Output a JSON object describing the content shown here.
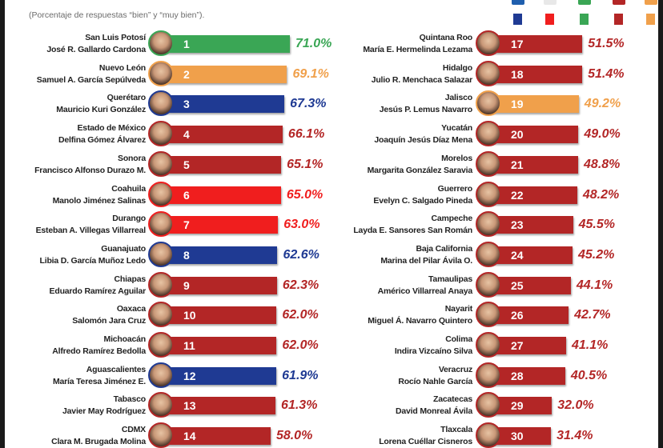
{
  "subtitle": "(Porcentaje de respuestas “bien” y “muy bien”).",
  "colors": {
    "PAN": "#1f3a93",
    "PRI": "#f01e1e",
    "PVEM": "#3aa655",
    "Morena": "#b32626",
    "MC": "#f0a04b"
  },
  "legend": [
    {
      "color": "#1f3a93",
      "icon": "pan-logo-icon"
    },
    {
      "color": "#f01e1e",
      "icon": "pri-logo-icon"
    },
    {
      "color": "#3aa655",
      "icon": "pvem-logo-icon"
    },
    {
      "color": "#b32626",
      "icon": "morena-logo-icon"
    },
    {
      "color": "#f0a04b",
      "icon": "mc-logo-icon"
    }
  ],
  "chart_data": {
    "type": "bar",
    "orientation": "horizontal",
    "subtitle": "(Porcentaje de respuestas “bien” y “muy bien”).",
    "items": [
      {
        "rank": "1",
        "state": "San Luis Potosí",
        "name": "José R. Gallardo Cardona",
        "value": 71.0,
        "label": "71.0%",
        "color": "#3aa655"
      },
      {
        "rank": "2",
        "state": "Nuevo León",
        "name": "Samuel A. García Sepúlveda",
        "value": 69.1,
        "label": "69.1%",
        "color": "#f0a04b"
      },
      {
        "rank": "3",
        "state": "Querétaro",
        "name": "Mauricio Kuri González",
        "value": 67.3,
        "label": "67.3%",
        "color": "#1f3a93"
      },
      {
        "rank": "4",
        "state": "Estado de México",
        "name": "Delfina Gómez Álvarez",
        "value": 66.1,
        "label": "66.1%",
        "color": "#b32626"
      },
      {
        "rank": "5",
        "state": "Sonora",
        "name": "Francisco Alfonso Durazo M.",
        "value": 65.1,
        "label": "65.1%",
        "color": "#b32626"
      },
      {
        "rank": "6",
        "state": "Coahuila",
        "name": "Manolo Jiménez Salinas",
        "value": 65.0,
        "label": "65.0%",
        "color": "#f01e1e"
      },
      {
        "rank": "7",
        "state": "Durango",
        "name": "Esteban A. Villegas Villarreal",
        "value": 63.0,
        "label": "63.0%",
        "color": "#f01e1e"
      },
      {
        "rank": "8",
        "state": "Guanajuato",
        "name": "Libia D. García Muñoz Ledo",
        "value": 62.6,
        "label": "62.6%",
        "color": "#1f3a93"
      },
      {
        "rank": "9",
        "state": "Chiapas",
        "name": "Eduardo Ramírez Aguilar",
        "value": 62.3,
        "label": "62.3%",
        "color": "#b32626"
      },
      {
        "rank": "10",
        "state": "Oaxaca",
        "name": "Salomón Jara Cruz",
        "value": 62.0,
        "label": "62.0%",
        "color": "#b32626"
      },
      {
        "rank": "11",
        "state": "Michoacán",
        "name": "Alfredo Ramírez Bedolla",
        "value": 62.0,
        "label": "62.0%",
        "color": "#b32626"
      },
      {
        "rank": "12",
        "state": "Aguascalientes",
        "name": "María Teresa Jiménez E.",
        "value": 61.9,
        "label": "61.9%",
        "color": "#1f3a93"
      },
      {
        "rank": "13",
        "state": "Tabasco",
        "name": "Javier May Rodríguez",
        "value": 61.3,
        "label": "61.3%",
        "color": "#b32626"
      },
      {
        "rank": "14",
        "state": "CDMX",
        "name": "Clara M. Brugada Molina",
        "value": 58.0,
        "label": "58.0%",
        "color": "#b32626"
      },
      {
        "rank": "17",
        "state": "Quintana Roo",
        "name": "María E. Hermelinda Lezama",
        "value": 51.5,
        "label": "51.5%",
        "color": "#b32626"
      },
      {
        "rank": "18",
        "state": "Hidalgo",
        "name": "Julio R. Menchaca Salazar",
        "value": 51.4,
        "label": "51.4%",
        "color": "#b32626"
      },
      {
        "rank": "19",
        "state": "Jalisco",
        "name": "Jesús P. Lemus Navarro",
        "value": 49.2,
        "label": "49.2%",
        "color": "#f0a04b"
      },
      {
        "rank": "20",
        "state": "Yucatán",
        "name": "Joaquín Jesús Díaz Mena",
        "value": 49.0,
        "label": "49.0%",
        "color": "#b32626"
      },
      {
        "rank": "21",
        "state": "Morelos",
        "name": "Margarita González Saravia",
        "value": 48.8,
        "label": "48.8%",
        "color": "#b32626"
      },
      {
        "rank": "22",
        "state": "Guerrero",
        "name": "Evelyn C. Salgado Pineda",
        "value": 48.2,
        "label": "48.2%",
        "color": "#b32626"
      },
      {
        "rank": "23",
        "state": "Campeche",
        "name": "Layda E. Sansores San Román",
        "value": 45.5,
        "label": "45.5%",
        "color": "#b32626"
      },
      {
        "rank": "24",
        "state": "Baja California",
        "name": "Marina del Pilar Ávila O.",
        "value": 45.2,
        "label": "45.2%",
        "color": "#b32626"
      },
      {
        "rank": "25",
        "state": "Tamaulipas",
        "name": "Américo Villarreal Anaya",
        "value": 44.1,
        "label": "44.1%",
        "color": "#b32626"
      },
      {
        "rank": "26",
        "state": "Nayarit",
        "name": "Miguel Á. Navarro Quintero",
        "value": 42.7,
        "label": "42.7%",
        "color": "#b32626"
      },
      {
        "rank": "27",
        "state": "Colima",
        "name": "Indira Vizcaíno Silva",
        "value": 41.1,
        "label": "41.1%",
        "color": "#b32626"
      },
      {
        "rank": "28",
        "state": "Veracruz",
        "name": "Rocío Nahle García",
        "value": 40.5,
        "label": "40.5%",
        "color": "#b32626"
      },
      {
        "rank": "29",
        "state": "Zacatecas",
        "name": "David Monreal Ávila",
        "value": 32.0,
        "label": "32.0%",
        "color": "#b32626"
      },
      {
        "rank": "30",
        "state": "Tlaxcala",
        "name": "Lorena Cuéllar Cisneros",
        "value": 31.4,
        "label": "31.4%",
        "color": "#b32626"
      }
    ]
  }
}
